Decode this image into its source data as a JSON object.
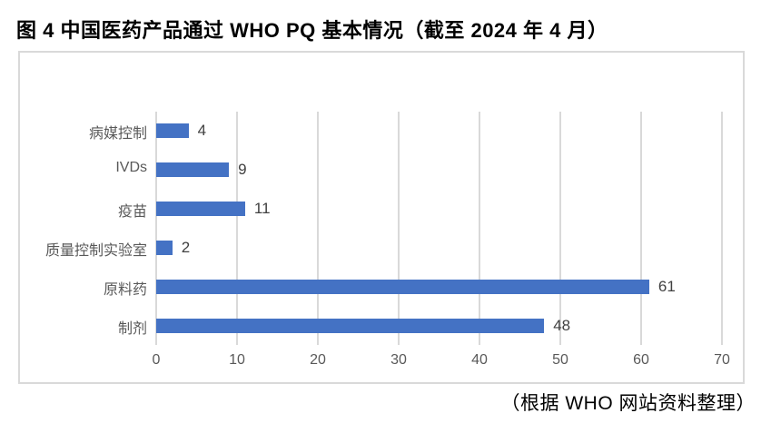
{
  "title": "图 4 中国医药产品通过 WHO PQ 基本情况（截至 2024 年 4 月）",
  "footer": "（根据 WHO 网站资料整理）",
  "chart_data": {
    "type": "bar",
    "orientation": "horizontal",
    "title": "图 4 中国医药产品通过 WHO PQ 基本情况（截至 2024 年 4 月）",
    "source_note": "（根据 WHO 网站资料整理）",
    "categories": [
      "病媒控制",
      "IVDs",
      "疫苗",
      "质量控制实验室",
      "原料药",
      "制剂"
    ],
    "values": [
      4,
      9,
      11,
      2,
      61,
      48
    ],
    "data_labels": [
      "4",
      "9",
      "11",
      "2",
      "61",
      "48"
    ],
    "xlim": [
      0,
      70
    ],
    "xticks": [
      "0",
      "10",
      "20",
      "30",
      "40",
      "50",
      "60",
      "70"
    ],
    "grid": true,
    "legend": "none",
    "colors": {
      "bar": "#4472c4",
      "gridline": "#d9d9d9",
      "frame_border": "#d9d9d9",
      "tick_text": "#595959",
      "category_text": "#595959",
      "value_text": "#404040",
      "title_text": "#000000"
    }
  }
}
